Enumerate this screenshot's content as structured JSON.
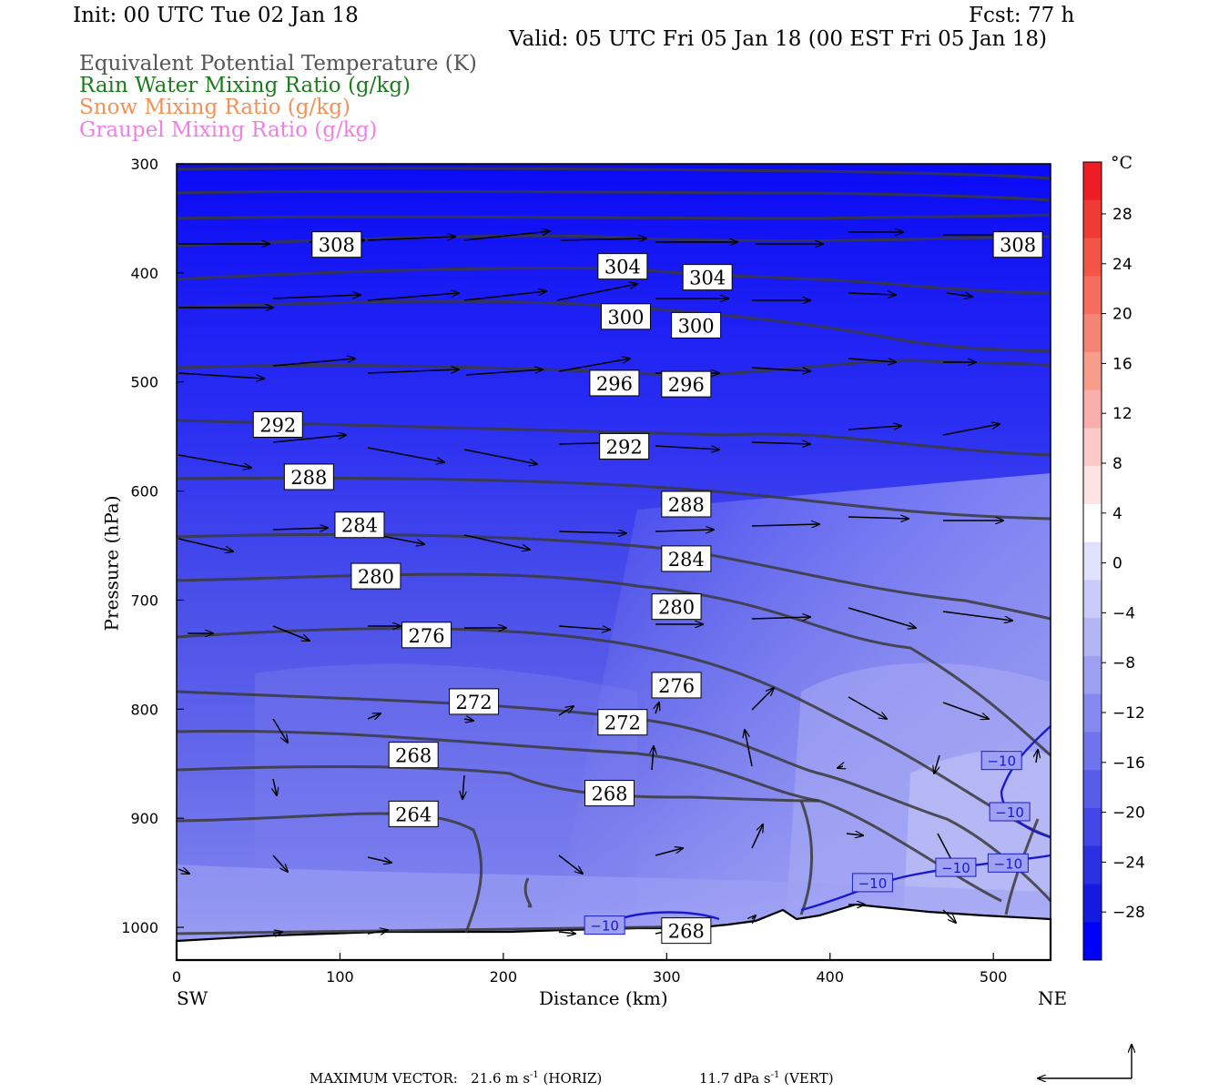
{
  "header": {
    "init": "Init: 00 UTC Tue 02 Jan 18",
    "fcst": "Fcst:   77 h",
    "valid": "Valid: 05 UTC Fri 05 Jan 18 (00 EST Fri 05 Jan 18)"
  },
  "legend": [
    {
      "label": "Equivalent Potential Temperature (K)",
      "color": "#555555"
    },
    {
      "label": "Rain Water Mixing Ratio (g/kg)",
      "color": "#1e7a1e"
    },
    {
      "label": "Snow Mixing Ratio (g/kg)",
      "color": "#f0925a"
    },
    {
      "label": "Graupel Mixing Ratio (g/kg)",
      "color": "#ef7fe6"
    }
  ],
  "footer": {
    "max_vector_label": "MAXIMUM VECTOR:",
    "horiz_value": "21.6 m s",
    "horiz_exp": "-1",
    "horiz_unit": "(HORIZ)",
    "vert_value": "11.7 dPa s",
    "vert_exp": "-1",
    "vert_unit": "(VERT)"
  },
  "colorbar": {
    "unit": "°C",
    "labels": [
      "28",
      "24",
      "20",
      "16",
      "12",
      "8",
      "4",
      "0",
      "−4",
      "−8",
      "−12",
      "−16",
      "−20",
      "−24",
      "−28"
    ],
    "colors": [
      "#ee1c25",
      "#f03a35",
      "#f25548",
      "#f46c5e",
      "#f68474",
      "#f89c8c",
      "#faafad",
      "#fbc9c7",
      "#fde3e2",
      "#ffffff",
      "#e0e2fb",
      "#c9ccf8",
      "#b3b6f5",
      "#9ca0f2",
      "#8589ef",
      "#6f73ec",
      "#585de9",
      "#4246e6",
      "#2b30e3",
      "#141ae0",
      "#0000ff"
    ]
  },
  "chart_data": {
    "type": "cross-section",
    "xlabel": "Distance (km)",
    "ylabel": "Pressure (hPa)",
    "x_ticks": [
      0,
      100,
      200,
      300,
      400,
      500
    ],
    "y_ticks": [
      300,
      400,
      500,
      600,
      700,
      800,
      900,
      1000
    ],
    "xlim": [
      0,
      535
    ],
    "ylim": [
      300,
      1030
    ],
    "left_end_label": "SW",
    "right_end_label": "NE",
    "theta_e_labels": [
      {
        "text": "308",
        "x": 98,
        "p": 374
      },
      {
        "text": "304",
        "x": 273,
        "p": 394
      },
      {
        "text": "304",
        "x": 325,
        "p": 404
      },
      {
        "text": "300",
        "x": 275,
        "p": 440
      },
      {
        "text": "300",
        "x": 318,
        "p": 448
      },
      {
        "text": "296",
        "x": 268,
        "p": 501
      },
      {
        "text": "296",
        "x": 312,
        "p": 502
      },
      {
        "text": "292",
        "x": 62,
        "p": 539
      },
      {
        "text": "292",
        "x": 274,
        "p": 559
      },
      {
        "text": "288",
        "x": 81,
        "p": 587
      },
      {
        "text": "288",
        "x": 312,
        "p": 612
      },
      {
        "text": "284",
        "x": 112,
        "p": 631
      },
      {
        "text": "284",
        "x": 312,
        "p": 662
      },
      {
        "text": "280",
        "x": 122,
        "p": 678
      },
      {
        "text": "280",
        "x": 306,
        "p": 706
      },
      {
        "text": "276",
        "x": 153,
        "p": 732
      },
      {
        "text": "276",
        "x": 306,
        "p": 778
      },
      {
        "text": "272",
        "x": 182,
        "p": 793
      },
      {
        "text": "272",
        "x": 273,
        "p": 812
      },
      {
        "text": "268",
        "x": 145,
        "p": 842
      },
      {
        "text": "268",
        "x": 265,
        "p": 877
      },
      {
        "text": "264",
        "x": 145,
        "p": 896
      },
      {
        "text": "268",
        "x": 312,
        "p": 1003
      },
      {
        "text": "308",
        "x": 515,
        "p": 374
      }
    ],
    "temp_labels": [
      {
        "text": "−10",
        "x": 262,
        "p": 998
      },
      {
        "text": "−10",
        "x": 426,
        "p": 959
      },
      {
        "text": "−10",
        "x": 477,
        "p": 945
      },
      {
        "text": "−10",
        "x": 509,
        "p": 941
      },
      {
        "text": "−10",
        "x": 510,
        "p": 894
      },
      {
        "text": "−10",
        "x": 505,
        "p": 847
      }
    ]
  }
}
